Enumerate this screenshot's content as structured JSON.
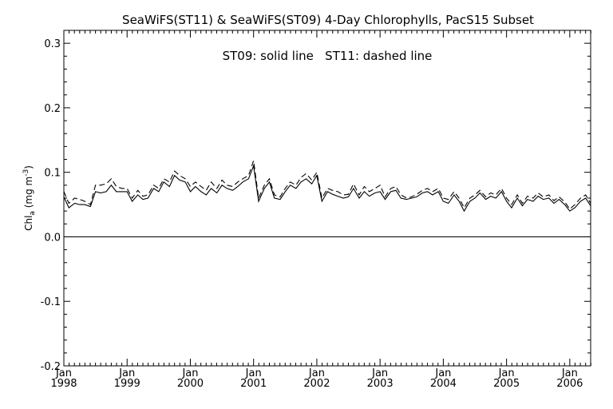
{
  "chart_data": {
    "type": "line",
    "title": "SeaWiFS(ST11) & SeaWiFS(ST09) 4-Day Chlorophylls, PacS15 Subset",
    "annotation": "ST09: solid line   ST11: dashed line",
    "ylabel": {
      "base": "Chl",
      "sub": "a",
      "unit_open": " (mg m",
      "sup": "-3",
      "unit_close": ")"
    },
    "xlabel": "",
    "ylim": [
      -0.2,
      0.32
    ],
    "xlim": [
      1998.0,
      2006.33
    ],
    "yticks": [
      -0.2,
      -0.1,
      0.0,
      0.1,
      0.2,
      0.3
    ],
    "ytick_labels": [
      "-0.2",
      "-0.1",
      "0.0",
      "0.1",
      "0.2",
      "0.3"
    ],
    "xticks": [
      {
        "pos": 1998,
        "month": "Jan",
        "year": "1998"
      },
      {
        "pos": 1999,
        "month": "Jan",
        "year": "1999"
      },
      {
        "pos": 2000,
        "month": "Jan",
        "year": "2000"
      },
      {
        "pos": 2001,
        "month": "Jan",
        "year": "2001"
      },
      {
        "pos": 2002,
        "month": "Jan",
        "year": "2002"
      },
      {
        "pos": 2003,
        "month": "Jan",
        "year": "2003"
      },
      {
        "pos": 2004,
        "month": "Jan",
        "year": "2004"
      },
      {
        "pos": 2005,
        "month": "Jan",
        "year": "2005"
      },
      {
        "pos": 2006,
        "month": "Jan",
        "year": "2006"
      }
    ],
    "grid": false,
    "zero_line": true,
    "series": [
      {
        "name": "ST09",
        "style": "solid",
        "x": [
          1998.0,
          1998.08,
          1998.17,
          1998.25,
          1998.33,
          1998.42,
          1998.5,
          1998.58,
          1998.67,
          1998.75,
          1998.83,
          1998.92,
          1999.0,
          1999.08,
          1999.17,
          1999.25,
          1999.33,
          1999.42,
          1999.5,
          1999.58,
          1999.67,
          1999.75,
          1999.83,
          1999.92,
          2000.0,
          2000.08,
          2000.17,
          2000.25,
          2000.33,
          2000.42,
          2000.5,
          2000.58,
          2000.67,
          2000.75,
          2000.83,
          2000.92,
          2001.0,
          2001.08,
          2001.17,
          2001.25,
          2001.33,
          2001.42,
          2001.5,
          2001.58,
          2001.67,
          2001.75,
          2001.83,
          2001.92,
          2002.0,
          2002.08,
          2002.17,
          2002.25,
          2002.33,
          2002.42,
          2002.5,
          2002.58,
          2002.67,
          2002.75,
          2002.83,
          2002.92,
          2003.0,
          2003.08,
          2003.17,
          2003.25,
          2003.33,
          2003.42,
          2003.5,
          2003.58,
          2003.67,
          2003.75,
          2003.83,
          2003.92,
          2004.0,
          2004.08,
          2004.17,
          2004.25,
          2004.33,
          2004.42,
          2004.5,
          2004.58,
          2004.67,
          2004.75,
          2004.83,
          2004.92,
          2005.0,
          2005.08,
          2005.17,
          2005.25,
          2005.33,
          2005.42,
          2005.5,
          2005.58,
          2005.67,
          2005.75,
          2005.83,
          2005.92,
          2006.0,
          2006.08,
          2006.17,
          2006.25,
          2006.33
        ],
        "y": [
          0.062,
          0.045,
          0.052,
          0.05,
          0.05,
          0.047,
          0.07,
          0.068,
          0.07,
          0.08,
          0.07,
          0.07,
          0.07,
          0.055,
          0.065,
          0.058,
          0.06,
          0.075,
          0.07,
          0.085,
          0.078,
          0.095,
          0.088,
          0.085,
          0.07,
          0.078,
          0.07,
          0.065,
          0.075,
          0.068,
          0.08,
          0.075,
          0.072,
          0.078,
          0.085,
          0.09,
          0.11,
          0.055,
          0.075,
          0.085,
          0.06,
          0.058,
          0.07,
          0.08,
          0.075,
          0.085,
          0.09,
          0.082,
          0.095,
          0.055,
          0.07,
          0.066,
          0.063,
          0.06,
          0.062,
          0.075,
          0.06,
          0.07,
          0.063,
          0.068,
          0.07,
          0.058,
          0.07,
          0.072,
          0.06,
          0.058,
          0.06,
          0.062,
          0.068,
          0.07,
          0.065,
          0.07,
          0.055,
          0.052,
          0.065,
          0.055,
          0.04,
          0.055,
          0.06,
          0.068,
          0.058,
          0.063,
          0.06,
          0.07,
          0.055,
          0.045,
          0.06,
          0.048,
          0.058,
          0.055,
          0.063,
          0.058,
          0.06,
          0.052,
          0.058,
          0.05,
          0.04,
          0.045,
          0.055,
          0.06,
          0.048
        ]
      },
      {
        "name": "ST11",
        "style": "dashed",
        "x": [
          1998.0,
          1998.08,
          1998.17,
          1998.25,
          1998.33,
          1998.42,
          1998.5,
          1998.58,
          1998.67,
          1998.75,
          1998.83,
          1998.92,
          1999.0,
          1999.08,
          1999.17,
          1999.25,
          1999.33,
          1999.42,
          1999.5,
          1999.58,
          1999.67,
          1999.75,
          1999.83,
          1999.92,
          2000.0,
          2000.08,
          2000.17,
          2000.25,
          2000.33,
          2000.42,
          2000.5,
          2000.58,
          2000.67,
          2000.75,
          2000.83,
          2000.92,
          2001.0,
          2001.08,
          2001.17,
          2001.25,
          2001.33,
          2001.42,
          2001.5,
          2001.58,
          2001.67,
          2001.75,
          2001.83,
          2001.92,
          2002.0,
          2002.08,
          2002.17,
          2002.25,
          2002.33,
          2002.42,
          2002.5,
          2002.58,
          2002.67,
          2002.75,
          2002.83,
          2002.92,
          2003.0,
          2003.08,
          2003.17,
          2003.25,
          2003.33,
          2003.42,
          2003.5,
          2003.58,
          2003.67,
          2003.75,
          2003.83,
          2003.92,
          2004.0,
          2004.08,
          2004.17,
          2004.25,
          2004.33,
          2004.42,
          2004.5,
          2004.58,
          2004.67,
          2004.75,
          2004.83,
          2004.92,
          2005.0,
          2005.08,
          2005.17,
          2005.25,
          2005.33,
          2005.42,
          2005.5,
          2005.58,
          2005.67,
          2005.75,
          2005.83,
          2005.92,
          2006.0,
          2006.08,
          2006.17,
          2006.25,
          2006.33
        ],
        "y": [
          0.07,
          0.052,
          0.06,
          0.058,
          0.055,
          0.05,
          0.08,
          0.08,
          0.082,
          0.09,
          0.078,
          0.075,
          0.075,
          0.06,
          0.072,
          0.063,
          0.065,
          0.08,
          0.075,
          0.09,
          0.085,
          0.102,
          0.095,
          0.09,
          0.078,
          0.085,
          0.078,
          0.072,
          0.085,
          0.075,
          0.088,
          0.08,
          0.078,
          0.085,
          0.09,
          0.095,
          0.118,
          0.06,
          0.08,
          0.09,
          0.065,
          0.062,
          0.075,
          0.085,
          0.08,
          0.092,
          0.098,
          0.088,
          0.1,
          0.06,
          0.075,
          0.072,
          0.07,
          0.065,
          0.066,
          0.082,
          0.065,
          0.078,
          0.07,
          0.075,
          0.08,
          0.062,
          0.075,
          0.078,
          0.065,
          0.06,
          0.062,
          0.066,
          0.072,
          0.075,
          0.07,
          0.075,
          0.06,
          0.058,
          0.07,
          0.06,
          0.045,
          0.06,
          0.065,
          0.072,
          0.062,
          0.068,
          0.065,
          0.075,
          0.06,
          0.05,
          0.065,
          0.052,
          0.063,
          0.06,
          0.068,
          0.062,
          0.065,
          0.056,
          0.062,
          0.054,
          0.043,
          0.05,
          0.06,
          0.065,
          0.052
        ]
      }
    ]
  }
}
